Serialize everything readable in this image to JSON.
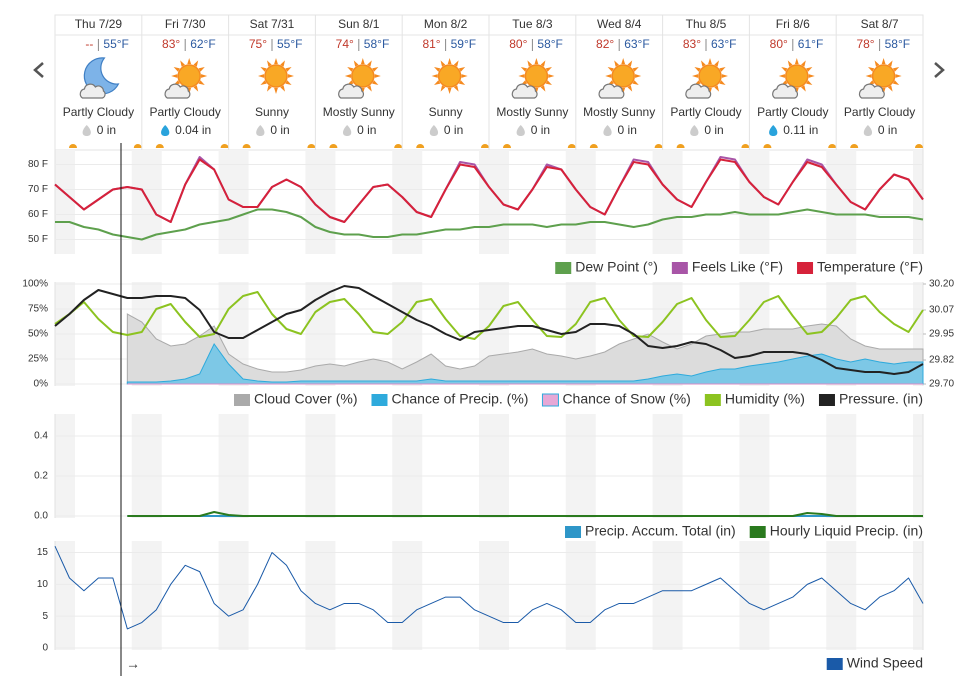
{
  "days": [
    {
      "date": "Thu 7/29",
      "high": "--",
      "low": "55°F",
      "condition": "Partly Cloudy",
      "precip": "0 in"
    },
    {
      "date": "Fri 7/30",
      "high": "83°",
      "low": "62°F",
      "condition": "Partly Cloudy",
      "precip": "0.04 in"
    },
    {
      "date": "Sat 7/31",
      "high": "75°",
      "low": "55°F",
      "condition": "Sunny",
      "precip": "0 in"
    },
    {
      "date": "Sun 8/1",
      "high": "74°",
      "low": "58°F",
      "condition": "Mostly Sunny",
      "precip": "0 in"
    },
    {
      "date": "Mon 8/2",
      "high": "81°",
      "low": "59°F",
      "condition": "Sunny",
      "precip": "0 in"
    },
    {
      "date": "Tue 8/3",
      "high": "80°",
      "low": "58°F",
      "condition": "Mostly Sunny",
      "precip": "0 in"
    },
    {
      "date": "Wed 8/4",
      "high": "82°",
      "low": "63°F",
      "condition": "Mostly Sunny",
      "precip": "0 in"
    },
    {
      "date": "Thu 8/5",
      "high": "83°",
      "low": "63°F",
      "condition": "Partly Cloudy",
      "precip": "0 in"
    },
    {
      "date": "Fri 8/6",
      "high": "80°",
      "low": "61°F",
      "condition": "Partly Cloudy",
      "precip": "0.11 in"
    },
    {
      "date": "Sat 8/7",
      "high": "78°",
      "low": "58°F",
      "condition": "Partly Cloudy",
      "precip": "0 in"
    }
  ],
  "arrow_label": "→",
  "chart_data": [
    {
      "type": "line",
      "ylim": [
        45,
        85
      ],
      "grid": true,
      "legend": "bottom-right",
      "yticks": [
        {
          "value": 50,
          "label": "50 F"
        },
        {
          "value": 60,
          "label": "60 F"
        },
        {
          "value": 70,
          "label": "70 F"
        },
        {
          "value": 80,
          "label": "80 F"
        }
      ],
      "series": [
        {
          "name": "Dew Point (°)",
          "color": "#5ea04d",
          "style": "line",
          "values": [
            57,
            57,
            55,
            54,
            52,
            51,
            50,
            52,
            53,
            54,
            56,
            57,
            58,
            60,
            62,
            62,
            61,
            59,
            55,
            53,
            52,
            52,
            51,
            51,
            52,
            52,
            53,
            54,
            54,
            55,
            55,
            56,
            56,
            56,
            55,
            56,
            56,
            57,
            57,
            56,
            55,
            56,
            58,
            59,
            59,
            60,
            60,
            61,
            60,
            60,
            60,
            61,
            62,
            61,
            60,
            60,
            60,
            59,
            59,
            59,
            58
          ]
        },
        {
          "name": "Feels Like (°F)",
          "color": "#a855a7",
          "style": "line",
          "values": [
            72,
            67,
            62,
            66,
            70,
            71,
            70,
            60,
            57,
            72,
            83,
            78,
            66,
            63,
            63,
            71,
            74,
            71,
            64,
            59,
            57,
            64,
            71,
            72,
            67,
            61,
            59,
            70,
            81,
            80,
            71,
            64,
            62,
            70,
            80,
            78,
            70,
            63,
            60,
            71,
            82,
            81,
            72,
            66,
            63,
            73,
            83,
            82,
            73,
            67,
            64,
            73,
            82,
            80,
            72,
            65,
            62,
            70,
            76,
            74,
            66
          ]
        },
        {
          "name": "Temperature (°F)",
          "color": "#d6223a",
          "style": "line",
          "values": [
            72,
            67,
            62,
            66,
            70,
            71,
            70,
            60,
            57,
            72,
            82,
            78,
            66,
            63,
            63,
            71,
            74,
            71,
            64,
            59,
            57,
            64,
            71,
            72,
            67,
            61,
            59,
            70,
            80,
            79,
            71,
            64,
            62,
            70,
            79,
            78,
            70,
            63,
            60,
            71,
            81,
            80,
            72,
            66,
            63,
            73,
            82,
            81,
            73,
            67,
            64,
            73,
            81,
            79,
            72,
            65,
            62,
            70,
            76,
            74,
            66
          ]
        }
      ]
    },
    {
      "type": "line",
      "ylim": [
        0,
        100
      ],
      "y2lim": [
        29.7,
        30.2
      ],
      "grid": true,
      "legend": "bottom-right",
      "yticks": [
        {
          "value": 0,
          "label": "0%"
        },
        {
          "value": 25,
          "label": "25%"
        },
        {
          "value": 50,
          "label": "50%"
        },
        {
          "value": 75,
          "label": "75%"
        },
        {
          "value": 100,
          "label": "100%"
        }
      ],
      "y2ticks": [
        {
          "value": 29.7,
          "label": "29.70"
        },
        29.82,
        29.95,
        30.07,
        {
          "value": 30.2,
          "label": "30.20"
        }
      ],
      "series": [
        {
          "name": "Cloud Cover (%)",
          "color": "#aaaaaa",
          "style": "area",
          "values": [
            null,
            null,
            null,
            null,
            null,
            70,
            62,
            45,
            38,
            40,
            48,
            58,
            30,
            20,
            15,
            12,
            12,
            14,
            18,
            20,
            18,
            22,
            25,
            22,
            15,
            22,
            30,
            18,
            15,
            18,
            28,
            30,
            32,
            35,
            30,
            28,
            25,
            28,
            32,
            40,
            45,
            50,
            42,
            35,
            40,
            48,
            50,
            52,
            52,
            55,
            55,
            55,
            58,
            60,
            58,
            45,
            38,
            35,
            35,
            35,
            35
          ]
        },
        {
          "name": "Chance of Precip. (%)",
          "color": "#2eaadc",
          "style": "area",
          "values": [
            null,
            null,
            null,
            null,
            null,
            2,
            2,
            2,
            3,
            5,
            10,
            40,
            20,
            5,
            3,
            2,
            2,
            3,
            3,
            3,
            3,
            3,
            3,
            3,
            3,
            3,
            5,
            3,
            3,
            3,
            3,
            3,
            3,
            3,
            3,
            3,
            3,
            3,
            3,
            3,
            3,
            5,
            8,
            10,
            8,
            12,
            15,
            15,
            18,
            20,
            22,
            25,
            28,
            30,
            25,
            22,
            25,
            22,
            20,
            22,
            22
          ]
        },
        {
          "name": "Chance of Snow (%)",
          "color": "#d98bc5",
          "style": "area",
          "values": [
            null,
            null,
            null,
            null,
            null,
            0,
            0,
            0,
            0,
            0,
            0,
            0,
            0,
            0,
            0,
            0,
            0,
            0,
            0,
            0,
            0,
            0,
            0,
            0,
            0,
            0,
            0,
            0,
            0,
            0,
            0,
            0,
            0,
            0,
            0,
            0,
            0,
            0,
            0,
            0,
            0,
            0,
            0,
            0,
            0,
            0,
            0,
            0,
            0,
            0,
            0,
            0,
            0,
            0,
            0,
            0,
            0,
            0,
            0,
            0,
            0
          ]
        },
        {
          "name": "Humidity (%)",
          "color": "#8cc320",
          "style": "line",
          "values": [
            60,
            70,
            82,
            65,
            52,
            49,
            52,
            75,
            80,
            62,
            47,
            50,
            75,
            88,
            92,
            70,
            55,
            50,
            72,
            82,
            85,
            70,
            52,
            50,
            62,
            82,
            85,
            65,
            48,
            45,
            58,
            78,
            82,
            64,
            48,
            47,
            60,
            82,
            86,
            64,
            48,
            47,
            62,
            80,
            86,
            64,
            47,
            48,
            64,
            82,
            88,
            68,
            50,
            52,
            66,
            84,
            88,
            72,
            60,
            52,
            74
          ]
        },
        {
          "name": "Pressure. (in)",
          "color": "#222222",
          "style": "line",
          "axis": "y2",
          "values": [
            29.99,
            30.05,
            30.12,
            30.17,
            30.15,
            30.13,
            30.13,
            30.14,
            30.14,
            30.13,
            30.07,
            29.96,
            29.93,
            29.93,
            29.97,
            30.01,
            30.05,
            30.07,
            30.12,
            30.16,
            30.19,
            30.18,
            30.14,
            30.1,
            30.06,
            30.02,
            29.99,
            29.95,
            29.92,
            29.96,
            29.97,
            29.98,
            29.99,
            29.99,
            29.97,
            29.95,
            29.96,
            30.0,
            30.0,
            29.99,
            29.95,
            29.89,
            29.88,
            29.89,
            29.91,
            29.9,
            29.87,
            29.83,
            29.84,
            29.86,
            29.86,
            29.86,
            29.85,
            29.82,
            29.78,
            29.77,
            29.76,
            29.76,
            29.75,
            29.76,
            29.8
          ]
        }
      ]
    },
    {
      "type": "line",
      "ylim": [
        0,
        0.5
      ],
      "grid": true,
      "legend": "bottom-right",
      "yticks": [
        {
          "value": 0,
          "label": "0.0"
        },
        0.2,
        0.4
      ],
      "series": [
        {
          "name": "Precip. Accum. Total (in)",
          "color": "#2e96c8",
          "style": "line",
          "values": [
            null,
            null,
            null,
            null,
            null,
            0,
            0,
            0,
            0,
            0,
            0,
            0,
            0,
            0,
            0,
            0,
            0,
            0,
            0,
            0,
            0,
            0,
            0,
            0,
            0,
            0,
            0,
            0,
            0,
            0,
            0,
            0,
            0,
            0,
            0,
            0,
            0,
            0,
            0,
            0,
            0,
            0,
            0,
            0,
            0,
            0,
            0,
            0,
            0,
            0,
            0,
            0,
            0,
            0,
            0,
            0,
            0,
            0,
            0,
            0,
            0
          ]
        },
        {
          "name": "Hourly Liquid Precip. (in)",
          "color": "#2a7a1e",
          "style": "line",
          "values": [
            null,
            null,
            null,
            null,
            null,
            0,
            0,
            0,
            0,
            0,
            0,
            0.02,
            0.005,
            0,
            0,
            0,
            0,
            0,
            0,
            0,
            0,
            0,
            0,
            0,
            0,
            0,
            0,
            0,
            0,
            0,
            0,
            0,
            0,
            0,
            0,
            0,
            0,
            0,
            0,
            0,
            0,
            0,
            0,
            0,
            0,
            0,
            0,
            0,
            0,
            0,
            0,
            0,
            0.015,
            0.01,
            0,
            0,
            0,
            0,
            0,
            0,
            0
          ]
        }
      ]
    },
    {
      "type": "line",
      "ylim": [
        0,
        16.5
      ],
      "grid": true,
      "legend": "bottom-right",
      "yticks": [
        0,
        5,
        10,
        15
      ],
      "series": [
        {
          "name": "Wind Speed",
          "color": "#1a5aa8",
          "style": "line",
          "values": [
            16,
            11,
            9,
            11,
            11,
            3,
            4,
            6,
            10,
            13,
            12,
            7,
            5,
            6,
            10,
            15,
            13,
            9,
            7,
            6,
            7,
            7,
            6,
            4,
            4,
            6,
            7,
            8,
            8,
            6,
            5,
            4,
            4,
            6,
            7,
            6,
            4,
            4,
            6,
            7,
            7,
            8,
            9,
            9,
            9,
            10,
            11,
            9,
            7,
            6,
            7,
            8,
            10,
            11,
            9,
            7,
            6,
            8,
            9,
            11,
            7
          ]
        }
      ]
    }
  ]
}
